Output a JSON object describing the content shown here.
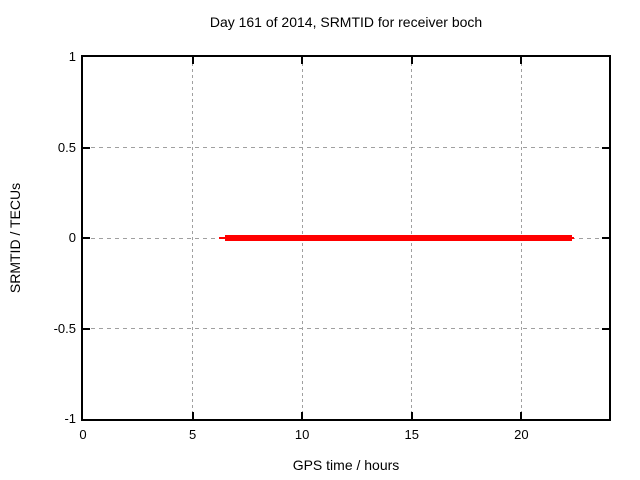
{
  "figure": {
    "background": "#ffffff",
    "text_color": "#000000"
  },
  "chart_data": {
    "type": "line",
    "title": "Day 161 of 2014, SRMTID for receiver boch",
    "xlabel": "GPS time / hours",
    "ylabel": "SRMTID / TECUs",
    "xlim": [
      0,
      24
    ],
    "ylim": [
      -1,
      1
    ],
    "x_ticks": [
      0,
      5,
      10,
      15,
      20
    ],
    "x_tick_labels": [
      "0",
      "5",
      "10",
      "15",
      "20"
    ],
    "y_ticks": [
      -1,
      -0.5,
      0,
      0.5,
      1
    ],
    "y_tick_labels": [
      "-1",
      "-0.5",
      "0",
      "0.5",
      "1"
    ],
    "grid": true,
    "grid_color": "#a0a0a0",
    "axis_color": "#000000",
    "legend": "none",
    "series": [
      {
        "name": "SRMTID",
        "color": "#ff0000",
        "y": 0,
        "x_full_range": [
          6.2,
          22.4
        ],
        "x_core_range": [
          6.5,
          22.3
        ]
      }
    ]
  }
}
